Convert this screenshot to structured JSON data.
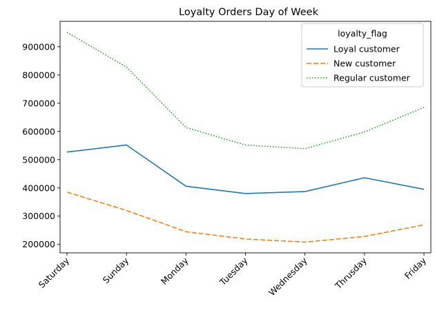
{
  "chart_data": {
    "type": "line",
    "title": "Loyalty Orders Day of Week",
    "xlabel": "",
    "ylabel": "",
    "categories": [
      "Saturday",
      "Sunday",
      "Monday",
      "Tuesday",
      "Wednesday",
      "Thrusday",
      "Friday"
    ],
    "y_ticks": [
      200000,
      300000,
      400000,
      500000,
      600000,
      700000,
      800000,
      900000
    ],
    "ylim": [
      170000,
      990000
    ],
    "grid": false,
    "legend": {
      "title": "loyalty_flag",
      "placement": "top-right"
    },
    "series": [
      {
        "name": "Loyal customer",
        "color": "#1f77b4",
        "style": "solid",
        "values": [
          527000,
          552000,
          406000,
          380000,
          387000,
          436000,
          395000
        ]
      },
      {
        "name": "New customer",
        "color": "#ff7f0e",
        "style": "dashed",
        "values": [
          385000,
          320000,
          245000,
          219000,
          208000,
          228000,
          269000
        ]
      },
      {
        "name": "Regular customer",
        "color": "#2ca02c",
        "style": "dotted",
        "values": [
          951000,
          828000,
          614000,
          552000,
          539000,
          598000,
          685000
        ]
      }
    ]
  }
}
